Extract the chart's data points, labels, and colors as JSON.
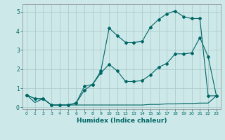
{
  "xlabel": "Humidex (Indice chaleur)",
  "xlim": [
    -0.5,
    23.5
  ],
  "ylim": [
    -0.1,
    5.4
  ],
  "xticks": [
    0,
    1,
    2,
    3,
    4,
    5,
    6,
    7,
    8,
    9,
    10,
    11,
    12,
    13,
    14,
    15,
    16,
    17,
    18,
    19,
    20,
    21,
    22,
    23
  ],
  "yticks": [
    0,
    1,
    2,
    3,
    4,
    5
  ],
  "bg_color": "#cde8e8",
  "line_color": "#006666",
  "line1_x": [
    0,
    1,
    2,
    3,
    4,
    5,
    6,
    7,
    8,
    9,
    10,
    11,
    12,
    13,
    14,
    15,
    16,
    17,
    18,
    19,
    20,
    21,
    22,
    23
  ],
  "line1_y": [
    0.65,
    0.25,
    0.45,
    0.12,
    0.12,
    0.12,
    0.12,
    0.12,
    0.12,
    0.12,
    0.12,
    0.12,
    0.12,
    0.12,
    0.12,
    0.15,
    0.15,
    0.18,
    0.18,
    0.2,
    0.2,
    0.22,
    0.22,
    0.6
  ],
  "line2_x": [
    0,
    1,
    2,
    3,
    4,
    5,
    6,
    7,
    8,
    9,
    10,
    11,
    12,
    13,
    14,
    15,
    16,
    17,
    18,
    19,
    20,
    21,
    22,
    23
  ],
  "line2_y": [
    0.65,
    0.45,
    0.45,
    0.12,
    0.12,
    0.12,
    0.22,
    1.1,
    1.2,
    1.8,
    2.25,
    1.9,
    1.35,
    1.35,
    1.4,
    1.7,
    2.1,
    2.3,
    2.8,
    2.8,
    2.85,
    3.65,
    2.65,
    0.6
  ],
  "line3_x": [
    0,
    1,
    2,
    3,
    4,
    5,
    6,
    7,
    8,
    9,
    10,
    11,
    12,
    13,
    14,
    15,
    16,
    17,
    18,
    19,
    20,
    21,
    22,
    23
  ],
  "line3_y": [
    0.65,
    0.45,
    0.45,
    0.12,
    0.12,
    0.12,
    0.22,
    0.9,
    1.2,
    1.9,
    4.15,
    3.75,
    3.4,
    3.4,
    3.45,
    4.2,
    4.6,
    4.9,
    5.05,
    4.75,
    4.65,
    4.65,
    0.6,
    0.6
  ]
}
